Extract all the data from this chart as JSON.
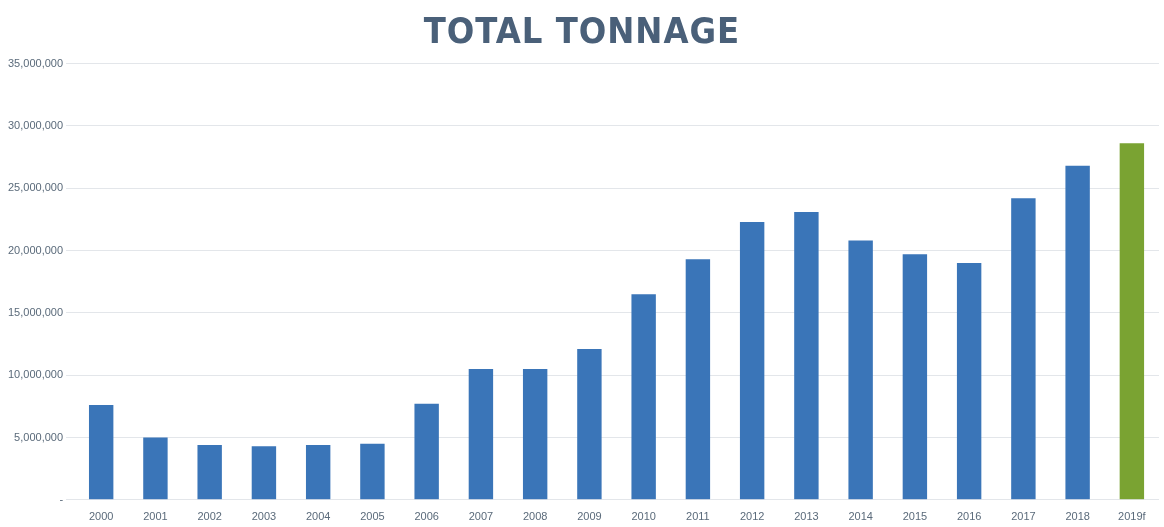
{
  "chart_data": {
    "type": "bar",
    "title": "TOTAL TONNAGE",
    "categories": [
      "2000",
      "2001",
      "2002",
      "2003",
      "2004",
      "2005",
      "2006",
      "2007",
      "2008",
      "2009",
      "2010",
      "2011",
      "2012",
      "2013",
      "2014",
      "2015",
      "2016",
      "2017",
      "2018",
      "2019f"
    ],
    "values": [
      7600000,
      5000000,
      4400000,
      4300000,
      4400000,
      4500000,
      7700000,
      10500000,
      10500000,
      12100000,
      16500000,
      19300000,
      22300000,
      23100000,
      20800000,
      19700000,
      19000000,
      24200000,
      26800000,
      28600000
    ],
    "colors": [
      "#3a75b8",
      "#3a75b8",
      "#3a75b8",
      "#3a75b8",
      "#3a75b8",
      "#3a75b8",
      "#3a75b8",
      "#3a75b8",
      "#3a75b8",
      "#3a75b8",
      "#3a75b8",
      "#3a75b8",
      "#3a75b8",
      "#3a75b8",
      "#3a75b8",
      "#3a75b8",
      "#3a75b8",
      "#3a75b8",
      "#3a75b8",
      "#7aa332"
    ],
    "ylim": [
      0,
      35000000
    ],
    "yticks": [
      {
        "value": 0,
        "label": "-"
      },
      {
        "value": 5000000,
        "label": "5,000,000"
      },
      {
        "value": 10000000,
        "label": "10,000,000"
      },
      {
        "value": 15000000,
        "label": "15,000,000"
      },
      {
        "value": 20000000,
        "label": "20,000,000"
      },
      {
        "value": 25000000,
        "label": "25,000,000"
      },
      {
        "value": 30000000,
        "label": "30,000,000"
      },
      {
        "value": 35000000,
        "label": "35,000,000"
      }
    ],
    "grid": "y",
    "legend": false
  }
}
